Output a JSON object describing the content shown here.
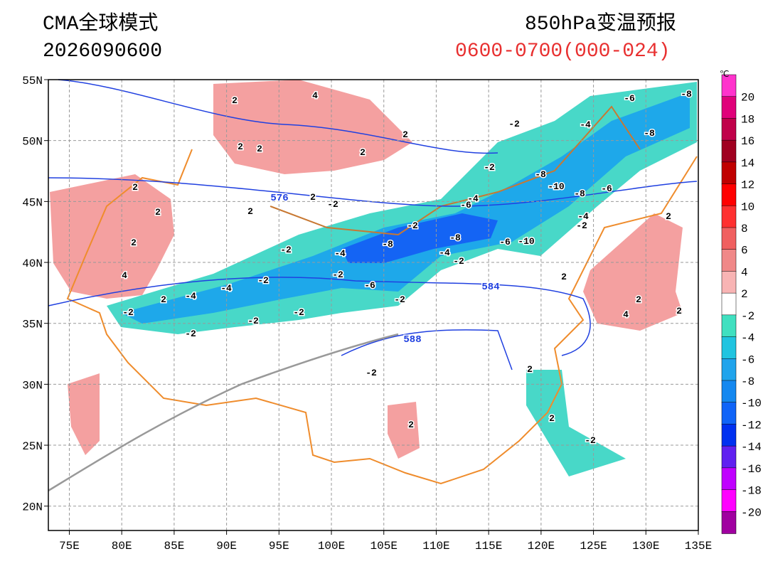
{
  "header": {
    "model": "CMA全球模式",
    "init": "2026090600",
    "product": "850hPa变温预报",
    "period": "0600-0700(000-024)"
  },
  "map": {
    "lonlim": [
      73,
      135
    ],
    "latlim": [
      18,
      55
    ],
    "lon_ticks": [
      {
        "value": 75,
        "label": "75E"
      },
      {
        "value": 80,
        "label": "80E"
      },
      {
        "value": 85,
        "label": "85E"
      },
      {
        "value": 90,
        "label": "90E"
      },
      {
        "value": 95,
        "label": "95E"
      },
      {
        "value": 100,
        "label": "100E"
      },
      {
        "value": 105,
        "label": "105E"
      },
      {
        "value": 110,
        "label": "110E"
      },
      {
        "value": 115,
        "label": "115E"
      },
      {
        "value": 120,
        "label": "120E"
      },
      {
        "value": 125,
        "label": "125E"
      },
      {
        "value": 130,
        "label": "130E"
      },
      {
        "value": 135,
        "label": "135E"
      }
    ],
    "lat_ticks": [
      {
        "value": 20,
        "label": "20N"
      },
      {
        "value": 25,
        "label": "25N"
      },
      {
        "value": 30,
        "label": "30N"
      },
      {
        "value": 35,
        "label": "35N"
      },
      {
        "value": 40,
        "label": "40N"
      },
      {
        "value": 45,
        "label": "45N"
      },
      {
        "value": 50,
        "label": "50N"
      },
      {
        "value": 55,
        "label": "55N"
      }
    ],
    "contour_labels": [
      "4",
      "2",
      "2",
      "2",
      "2",
      "2",
      "2",
      "2",
      "2",
      "2",
      "2",
      "4",
      "2",
      "-2",
      "-2",
      "-2",
      "-4",
      "-8",
      "-4",
      "-2",
      "-2",
      "-4",
      "-2",
      "-6",
      "-2",
      "-2",
      "-2",
      "-2",
      "-2",
      "-4",
      "-2",
      "2",
      "2",
      "2",
      "-2",
      "2",
      "2",
      "4",
      "2",
      "2",
      "-6",
      "-8",
      "-2",
      "-4",
      "-8",
      "-8",
      "-10",
      "-8",
      "-6",
      "-4",
      "-6",
      "-4",
      "-2",
      "-8",
      "-6",
      "-10",
      "-2"
    ],
    "height_labels": [
      "576",
      "584",
      "588"
    ]
  },
  "colorbar": {
    "unit": "℃",
    "labels": [
      20,
      18,
      16,
      14,
      12,
      10,
      8,
      6,
      4,
      2,
      -2,
      -4,
      -6,
      -8,
      -10,
      -12,
      -14,
      -16,
      -18,
      -20
    ],
    "colors": [
      "#ff33cc",
      "#e0007a",
      "#c0004a",
      "#a00020",
      "#c00000",
      "#ff0000",
      "#ff3030",
      "#f06060",
      "#f08888",
      "#f8b4b4",
      "#ffffff",
      "#40e0c0",
      "#20c4e0",
      "#20a4ec",
      "#1488f0",
      "#1064f8",
      "#0030f0",
      "#6020f0",
      "#c000ff",
      "#ff00ff",
      "#a000a0"
    ]
  }
}
